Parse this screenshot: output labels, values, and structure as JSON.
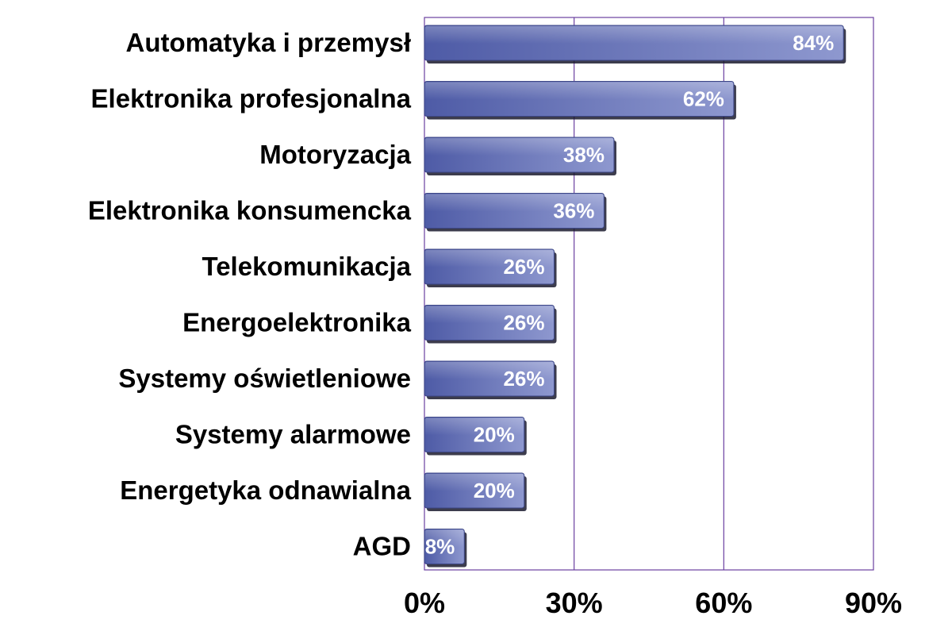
{
  "chart_data": {
    "type": "bar",
    "orientation": "horizontal",
    "title": "",
    "xlabel": "",
    "ylabel": "",
    "xlim": [
      0,
      90
    ],
    "x_ticks": [
      0,
      30,
      60,
      90
    ],
    "x_tick_labels": [
      "0%",
      "30%",
      "60%",
      "90%"
    ],
    "grid": "vertical",
    "legend": "none",
    "categories": [
      "Automatyka i przemysł",
      "Elektronika profesjonalna",
      "Motoryzacja",
      "Elektronika konsumencka",
      "Telekomunikacja",
      "Energoelektronika",
      "Systemy oświetleniowe",
      "Systemy alarmowe",
      "Energetyka odnawialna",
      "AGD"
    ],
    "values": [
      84,
      62,
      38,
      36,
      26,
      26,
      26,
      20,
      20,
      8
    ],
    "data_labels": [
      "84%",
      "62%",
      "38%",
      "36%",
      "26%",
      "26%",
      "26%",
      "20%",
      "20%",
      "8%"
    ],
    "colors": {
      "bar": "#6270b4",
      "bar_light": "#8b95cc",
      "bar_dark": "#3c4686",
      "shadow": "#1a1a2e",
      "gridline": "#6a3fa0",
      "frame": "#6a3fa0"
    }
  }
}
